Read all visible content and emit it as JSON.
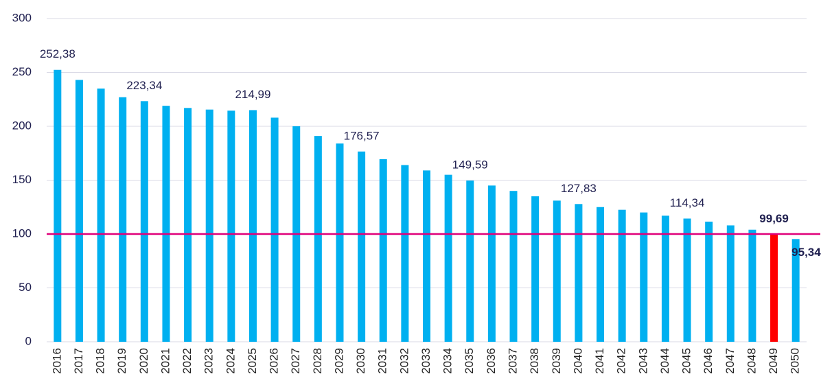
{
  "chart_data": {
    "type": "bar",
    "categories": [
      "2016",
      "2017",
      "2018",
      "2019",
      "2020",
      "2021",
      "2022",
      "2023",
      "2024",
      "2025",
      "2026",
      "2027",
      "2028",
      "2029",
      "2030",
      "2031",
      "2032",
      "2033",
      "2034",
      "2035",
      "2036",
      "2037",
      "2038",
      "2039",
      "2040",
      "2041",
      "2042",
      "2043",
      "2044",
      "2045",
      "2046",
      "2047",
      "2048",
      "2049",
      "2050"
    ],
    "values": [
      252.38,
      243,
      235,
      227,
      223.34,
      219,
      217,
      215.5,
      214.5,
      214.99,
      208,
      200,
      191,
      184,
      176.57,
      169.5,
      164,
      159,
      155,
      149.59,
      145,
      140,
      135,
      131,
      127.83,
      125,
      122.5,
      120,
      117,
      114.34,
      111.5,
      108,
      104,
      99.69,
      95.34
    ],
    "value_labels": [
      "252,38",
      null,
      null,
      null,
      "223,34",
      null,
      null,
      null,
      null,
      "214,99",
      null,
      null,
      null,
      null,
      "176,57",
      null,
      null,
      null,
      null,
      "149,59",
      null,
      null,
      null,
      null,
      "127,83",
      null,
      null,
      null,
      null,
      "114,34",
      null,
      null,
      null,
      "99,69",
      "95,34"
    ],
    "colors": [
      "#00b0f0",
      "#00b0f0",
      "#00b0f0",
      "#00b0f0",
      "#00b0f0",
      "#00b0f0",
      "#00b0f0",
      "#00b0f0",
      "#00b0f0",
      "#00b0f0",
      "#00b0f0",
      "#00b0f0",
      "#00b0f0",
      "#00b0f0",
      "#00b0f0",
      "#00b0f0",
      "#00b0f0",
      "#00b0f0",
      "#00b0f0",
      "#00b0f0",
      "#00b0f0",
      "#00b0f0",
      "#00b0f0",
      "#00b0f0",
      "#00b0f0",
      "#00b0f0",
      "#00b0f0",
      "#00b0f0",
      "#00b0f0",
      "#00b0f0",
      "#00b0f0",
      "#00b0f0",
      "#00b0f0",
      "#ff0000",
      "#00b0f0"
    ],
    "reference_line": {
      "value": 100,
      "color": "#e0007a"
    },
    "ylim": [
      0,
      300
    ],
    "yticks": [
      0,
      50,
      100,
      150,
      200,
      250,
      300
    ],
    "grid": true
  }
}
